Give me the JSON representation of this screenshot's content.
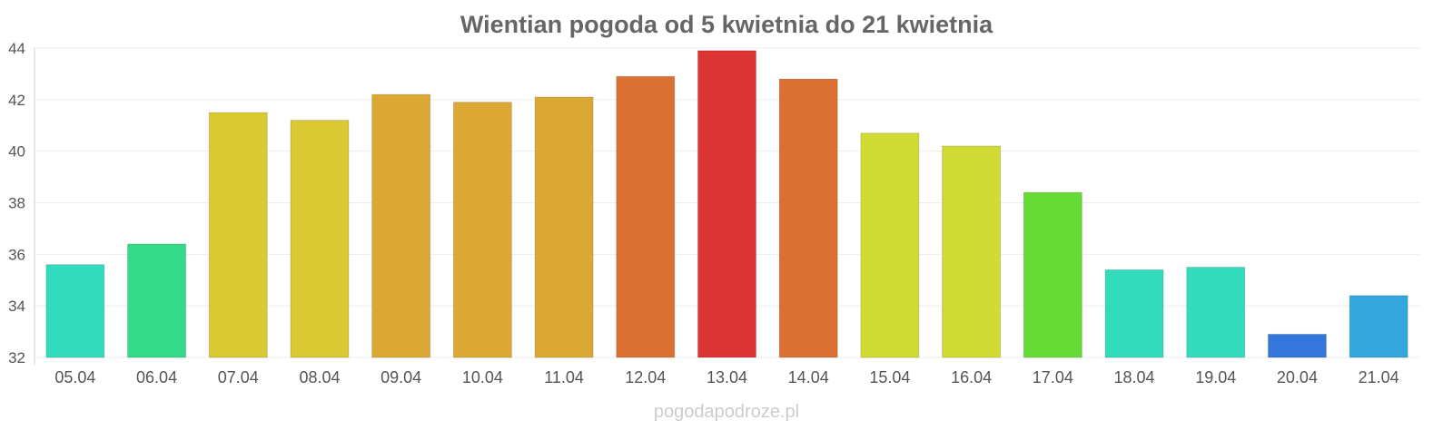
{
  "chart_data": {
    "type": "bar",
    "title": "Wientian pogoda od 5 kwietnia do 21 kwietnia",
    "xlabel": "",
    "ylabel": "",
    "ylim": [
      32,
      44
    ],
    "yticks": [
      32,
      34,
      36,
      38,
      40,
      42,
      44
    ],
    "grid": true,
    "categories": [
      "05.04",
      "06.04",
      "07.04",
      "08.04",
      "09.04",
      "10.04",
      "11.04",
      "12.04",
      "13.04",
      "14.04",
      "15.04",
      "16.04",
      "17.04",
      "18.04",
      "19.04",
      "20.04",
      "21.04"
    ],
    "values": [
      35.6,
      36.4,
      41.5,
      41.2,
      42.2,
      41.9,
      42.1,
      42.9,
      43.9,
      42.8,
      40.7,
      40.2,
      38.4,
      35.4,
      35.5,
      32.9,
      34.4
    ],
    "colors": [
      "#33dbbd",
      "#33db88",
      "#dbc933",
      "#dbc933",
      "#dba933",
      "#dba933",
      "#dba933",
      "#db7033",
      "#db3433",
      "#db7033",
      "#d0db33",
      "#d0db33",
      "#66db33",
      "#33dbbd",
      "#33dbbd",
      "#3377db",
      "#33a6db"
    ]
  },
  "watermark": "pogodapodroze.pl"
}
